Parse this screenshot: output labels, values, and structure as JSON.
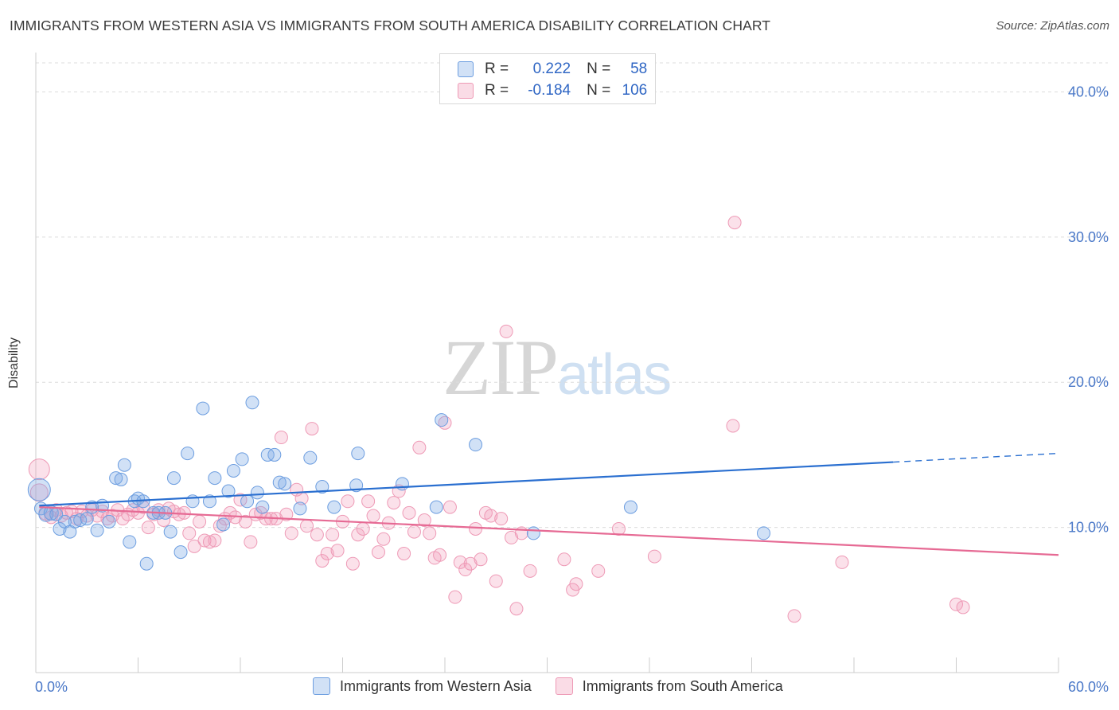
{
  "header": {
    "title": "IMMIGRANTS FROM WESTERN ASIA VS IMMIGRANTS FROM SOUTH AMERICA DISABILITY CORRELATION CHART",
    "source": "Source: ZipAtlas.com"
  },
  "watermark": {
    "zip": "ZIP",
    "atlas": "atlas"
  },
  "legend_top": {
    "rows": [
      {
        "r_key": "R =",
        "r_value": "0.222",
        "n_key": "N =",
        "n_value": "58",
        "color": "#7aaae6"
      },
      {
        "r_key": "R =",
        "r_value": "-0.184",
        "n_key": "N =",
        "n_value": "106",
        "color": "#f29bb8"
      }
    ]
  },
  "legend_bottom": {
    "items": [
      {
        "label": "Immigrants from Western Asia",
        "color": "#7aaae6"
      },
      {
        "label": "Immigrants from South America",
        "color": "#f29bb8"
      }
    ]
  },
  "colors": {
    "blue_fill": "rgba(122,170,230,0.35)",
    "blue_stroke": "#6d9ee0",
    "blue_line": "#2a6fd0",
    "pink_fill": "rgba(242,155,184,0.30)",
    "pink_stroke": "#ee9ab6",
    "pink_line": "#e66a94",
    "grid": "#dcdcdc",
    "tick_text": "#4a78c8"
  },
  "chart_data": {
    "type": "scatter",
    "title": "IMMIGRANTS FROM WESTERN ASIA VS IMMIGRANTS FROM SOUTH AMERICA DISABILITY CORRELATION CHART",
    "xlabel": "",
    "ylabel": "Disability",
    "xlim": [
      0,
      60
    ],
    "ylim": [
      0,
      42
    ],
    "x_tick_labels": [
      "0.0%",
      "60.0%"
    ],
    "y_ticks": [
      10,
      20,
      30,
      40
    ],
    "y_tick_labels": [
      "10.0%",
      "20.0%",
      "30.0%",
      "40.0%"
    ],
    "grid": true,
    "legend_placement": "top-center",
    "series": [
      {
        "name": "Immigrants from Western Asia",
        "R": 0.222,
        "N": 58,
        "trend": {
          "x_start": 0.2,
          "y_start": 11.5,
          "x_solid_end": 50.3,
          "y_solid_end": 14.5,
          "x_end": 60,
          "y_end": 15.1
        },
        "points": [
          [
            0.2,
            12.6,
            14
          ],
          [
            0.3,
            11.3,
            8
          ],
          [
            0.6,
            10.9,
            9
          ],
          [
            0.9,
            11.0,
            9
          ],
          [
            1.2,
            10.9,
            8
          ],
          [
            1.4,
            9.9,
            8
          ],
          [
            1.7,
            10.4,
            8
          ],
          [
            2.0,
            9.7,
            8
          ],
          [
            2.3,
            10.4,
            8
          ],
          [
            2.6,
            10.5,
            8
          ],
          [
            3.0,
            10.6,
            8
          ],
          [
            3.3,
            11.4,
            8
          ],
          [
            3.6,
            9.8,
            8
          ],
          [
            3.9,
            11.5,
            8
          ],
          [
            4.3,
            10.4,
            8
          ],
          [
            4.7,
            13.4,
            8
          ],
          [
            5.0,
            13.3,
            8
          ],
          [
            5.2,
            14.3,
            8
          ],
          [
            5.5,
            9.0,
            8
          ],
          [
            5.8,
            11.8,
            8
          ],
          [
            6.0,
            12.0,
            8
          ],
          [
            6.3,
            11.8,
            8
          ],
          [
            6.5,
            7.5,
            8
          ],
          [
            6.9,
            11.0,
            8
          ],
          [
            7.2,
            11.0,
            8
          ],
          [
            7.6,
            11.0,
            8
          ],
          [
            7.9,
            9.7,
            8
          ],
          [
            8.1,
            13.4,
            8
          ],
          [
            8.5,
            8.3,
            8
          ],
          [
            8.9,
            15.1,
            8
          ],
          [
            9.2,
            11.8,
            8
          ],
          [
            9.8,
            18.2,
            8
          ],
          [
            10.2,
            11.8,
            8
          ],
          [
            10.5,
            13.4,
            8
          ],
          [
            11.0,
            10.2,
            8
          ],
          [
            11.3,
            12.5,
            8
          ],
          [
            11.6,
            13.9,
            8
          ],
          [
            12.1,
            14.7,
            8
          ],
          [
            12.4,
            11.8,
            8
          ],
          [
            12.7,
            18.6,
            8
          ],
          [
            13.0,
            12.4,
            8
          ],
          [
            13.3,
            11.4,
            8
          ],
          [
            13.6,
            15.0,
            8
          ],
          [
            14.0,
            15.0,
            8
          ],
          [
            14.3,
            13.1,
            8
          ],
          [
            14.6,
            13.0,
            8
          ],
          [
            15.5,
            11.3,
            8
          ],
          [
            16.1,
            14.8,
            8
          ],
          [
            16.8,
            12.8,
            8
          ],
          [
            17.5,
            11.4,
            8
          ],
          [
            18.9,
            15.1,
            8
          ],
          [
            18.8,
            12.9,
            8
          ],
          [
            21.5,
            13.0,
            8
          ],
          [
            23.5,
            11.4,
            8
          ],
          [
            23.8,
            17.4,
            8
          ],
          [
            25.8,
            15.7,
            8
          ],
          [
            29.2,
            9.6,
            8
          ],
          [
            34.9,
            11.4,
            8
          ],
          [
            42.7,
            9.6,
            8
          ]
        ]
      },
      {
        "name": "Immigrants from South America",
        "R": -0.184,
        "N": 106,
        "trend": {
          "x_start": 0.2,
          "y_start": 11.4,
          "x_end": 60,
          "y_end": 8.1
        },
        "points": [
          [
            0.2,
            14.0,
            13
          ],
          [
            0.2,
            12.4,
            11
          ],
          [
            0.6,
            11.0,
            9
          ],
          [
            0.9,
            10.7,
            8
          ],
          [
            1.2,
            11.2,
            8
          ],
          [
            1.5,
            10.8,
            8
          ],
          [
            1.8,
            11.0,
            8
          ],
          [
            2.1,
            11.1,
            8
          ],
          [
            2.4,
            10.6,
            8
          ],
          [
            2.7,
            11.1,
            8
          ],
          [
            3.0,
            10.8,
            8
          ],
          [
            3.3,
            11.2,
            8
          ],
          [
            3.6,
            10.8,
            8
          ],
          [
            3.9,
            11.1,
            8
          ],
          [
            4.2,
            10.6,
            8
          ],
          [
            4.5,
            10.8,
            8
          ],
          [
            4.8,
            11.2,
            8
          ],
          [
            5.1,
            10.6,
            8
          ],
          [
            5.4,
            10.9,
            8
          ],
          [
            5.7,
            11.2,
            8
          ],
          [
            6.0,
            11.0,
            8
          ],
          [
            6.3,
            11.4,
            8
          ],
          [
            6.6,
            10.0,
            8
          ],
          [
            6.9,
            10.9,
            8
          ],
          [
            7.2,
            11.2,
            8
          ],
          [
            7.5,
            10.5,
            8
          ],
          [
            7.8,
            11.3,
            8
          ],
          [
            8.1,
            11.1,
            8
          ],
          [
            8.4,
            10.9,
            8
          ],
          [
            8.7,
            11.0,
            8
          ],
          [
            9.0,
            9.6,
            8
          ],
          [
            9.3,
            8.7,
            8
          ],
          [
            9.6,
            10.4,
            8
          ],
          [
            9.9,
            9.1,
            8
          ],
          [
            10.2,
            9.0,
            8
          ],
          [
            10.5,
            9.1,
            8
          ],
          [
            10.8,
            10.1,
            8
          ],
          [
            11.1,
            10.6,
            8
          ],
          [
            11.4,
            11.0,
            8
          ],
          [
            11.7,
            10.7,
            8
          ],
          [
            12.0,
            11.9,
            8
          ],
          [
            12.3,
            10.4,
            8
          ],
          [
            12.6,
            9.0,
            8
          ],
          [
            12.9,
            10.9,
            8
          ],
          [
            13.2,
            11.0,
            8
          ],
          [
            13.5,
            10.6,
            8
          ],
          [
            13.8,
            10.6,
            8
          ],
          [
            14.1,
            10.6,
            8
          ],
          [
            14.4,
            16.2,
            8
          ],
          [
            14.7,
            10.9,
            8
          ],
          [
            15.0,
            9.6,
            8
          ],
          [
            15.3,
            12.6,
            8
          ],
          [
            15.6,
            12.0,
            8
          ],
          [
            15.9,
            10.1,
            8
          ],
          [
            16.2,
            16.8,
            8
          ],
          [
            16.5,
            9.5,
            8
          ],
          [
            16.8,
            7.7,
            8
          ],
          [
            17.1,
            8.2,
            8
          ],
          [
            17.4,
            9.5,
            8
          ],
          [
            17.7,
            8.4,
            8
          ],
          [
            18.0,
            10.4,
            8
          ],
          [
            18.3,
            11.8,
            8
          ],
          [
            18.6,
            7.5,
            8
          ],
          [
            18.9,
            9.5,
            8
          ],
          [
            19.2,
            9.9,
            8
          ],
          [
            19.5,
            11.8,
            8
          ],
          [
            19.8,
            10.8,
            8
          ],
          [
            20.1,
            8.3,
            8
          ],
          [
            20.4,
            9.2,
            8
          ],
          [
            20.7,
            10.3,
            8
          ],
          [
            21.0,
            11.7,
            8
          ],
          [
            21.3,
            12.5,
            8
          ],
          [
            21.6,
            8.2,
            8
          ],
          [
            21.9,
            11.0,
            8
          ],
          [
            22.2,
            9.7,
            8
          ],
          [
            22.5,
            15.5,
            8
          ],
          [
            22.8,
            10.5,
            8
          ],
          [
            23.1,
            9.6,
            8
          ],
          [
            23.4,
            7.9,
            8
          ],
          [
            23.7,
            8.1,
            8
          ],
          [
            24.0,
            17.2,
            8
          ],
          [
            24.3,
            11.4,
            8
          ],
          [
            24.6,
            5.2,
            8
          ],
          [
            24.9,
            7.6,
            8
          ],
          [
            25.2,
            7.1,
            8
          ],
          [
            25.5,
            7.5,
            8
          ],
          [
            25.8,
            9.9,
            8
          ],
          [
            26.1,
            7.8,
            8
          ],
          [
            26.4,
            11.0,
            8
          ],
          [
            26.7,
            10.8,
            8
          ],
          [
            27.0,
            6.3,
            8
          ],
          [
            27.3,
            10.6,
            8
          ],
          [
            27.6,
            23.5,
            8
          ],
          [
            27.9,
            9.3,
            8
          ],
          [
            28.2,
            4.4,
            8
          ],
          [
            28.5,
            9.6,
            8
          ],
          [
            29.0,
            7.0,
            8
          ],
          [
            31.0,
            7.8,
            8
          ],
          [
            31.5,
            5.7,
            8
          ],
          [
            31.7,
            6.1,
            8
          ],
          [
            33.0,
            7.0,
            8
          ],
          [
            34.2,
            9.9,
            8
          ],
          [
            36.3,
            8.0,
            8
          ],
          [
            40.9,
            17.0,
            8
          ],
          [
            41.0,
            31.0,
            8
          ],
          [
            44.5,
            3.9,
            8
          ],
          [
            47.3,
            7.6,
            8
          ],
          [
            54.0,
            4.7,
            8
          ],
          [
            54.4,
            4.5,
            8
          ]
        ]
      }
    ]
  }
}
